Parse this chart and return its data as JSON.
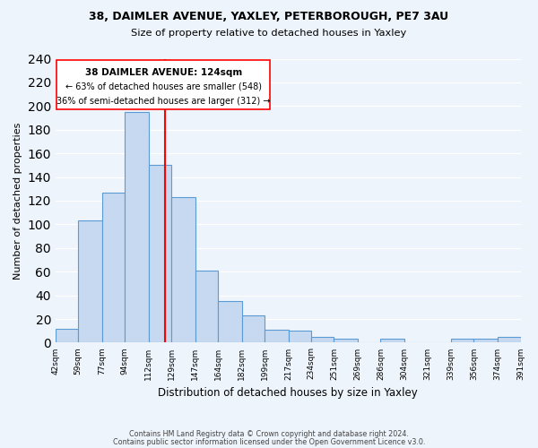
{
  "title1": "38, DAIMLER AVENUE, YAXLEY, PETERBOROUGH, PE7 3AU",
  "title2": "Size of property relative to detached houses in Yaxley",
  "xlabel": "Distribution of detached houses by size in Yaxley",
  "ylabel": "Number of detached properties",
  "bar_labels": [
    "42sqm",
    "59sqm",
    "77sqm",
    "94sqm",
    "112sqm",
    "129sqm",
    "147sqm",
    "164sqm",
    "182sqm",
    "199sqm",
    "217sqm",
    "234sqm",
    "251sqm",
    "269sqm",
    "286sqm",
    "304sqm",
    "321sqm",
    "339sqm",
    "356sqm",
    "374sqm",
    "391sqm"
  ],
  "bar_values": [
    12,
    103,
    127,
    195,
    150,
    123,
    61,
    35,
    23,
    11,
    10,
    5,
    3,
    0,
    3,
    0,
    0,
    3,
    3,
    5
  ],
  "bar_left_edges": [
    42,
    59,
    77,
    94,
    112,
    129,
    147,
    164,
    182,
    199,
    217,
    234,
    251,
    269,
    286,
    304,
    321,
    339,
    356,
    374
  ],
  "bar_widths": [
    17,
    18,
    17,
    18,
    17,
    18,
    17,
    18,
    17,
    18,
    17,
    17,
    18,
    17,
    18,
    17,
    18,
    17,
    18,
    17
  ],
  "bar_color": "#c6d9f0",
  "bar_edge_color": "#5b9bd5",
  "vline_x": 124,
  "vline_color": "red",
  "annotation_title": "38 DAIMLER AVENUE: 124sqm",
  "annotation_line1": "← 63% of detached houses are smaller (548)",
  "annotation_line2": "36% of semi-detached houses are larger (312) →",
  "ylim": [
    0,
    240
  ],
  "yticks": [
    0,
    20,
    40,
    60,
    80,
    100,
    120,
    140,
    160,
    180,
    200,
    220,
    240
  ],
  "footer1": "Contains HM Land Registry data © Crown copyright and database right 2024.",
  "footer2": "Contains public sector information licensed under the Open Government Licence v3.0.",
  "bg_color": "#eef4fc"
}
